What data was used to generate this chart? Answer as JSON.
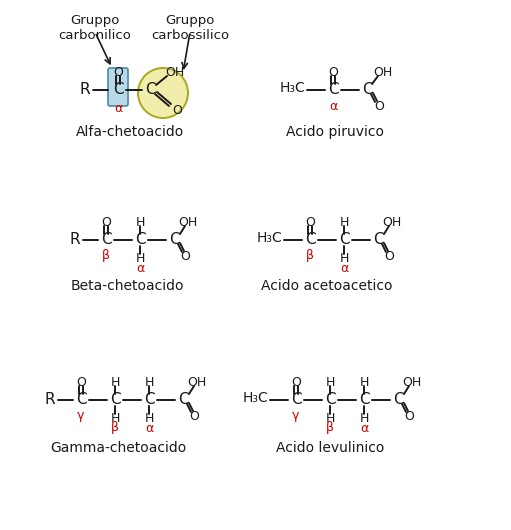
{
  "bg_color": "#ffffff",
  "black": "#1a1a1a",
  "red": "#cc0000",
  "blue_fill": "#b8d9e8",
  "yellow_fill": "#f0eeaa",
  "yellow_edge": "#aaa820",
  "figsize": [
    5.11,
    5.3
  ],
  "dpi": 100,
  "labels": {
    "alfa": "Alfa-chetoacido",
    "piruvico": "Acido piruvico",
    "beta": "Beta-chetoacido",
    "acetoacetico": "Acido acetoacetico",
    "gamma": "Gamma-chetoacido",
    "levulinico": "Acido levulinico",
    "gruppo_carbonilico": "Gruppo\ncarbonilico",
    "gruppo_carbossilico": "Gruppo\ncarbossilico"
  }
}
